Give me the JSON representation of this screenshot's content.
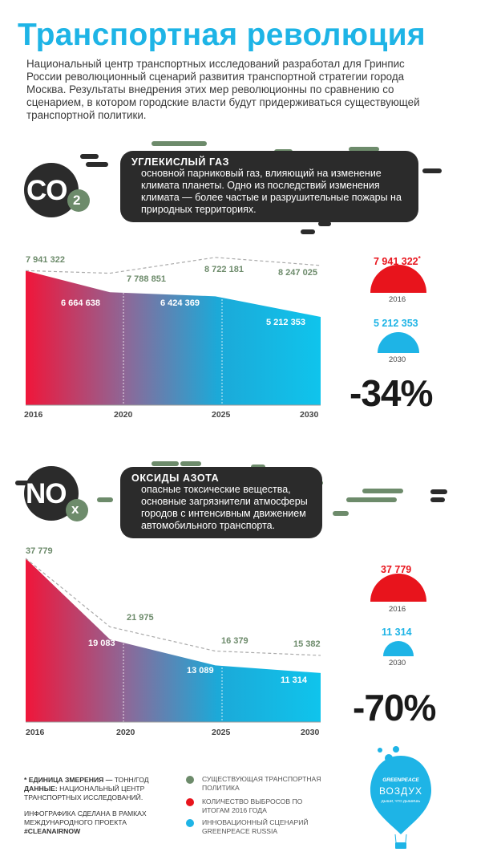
{
  "title": "Транспортная революция",
  "intro": "Национальный центр транспортных исследований разработал для Гринпис России революционный сценарий развития транспортной стратегии города Москва. Результаты внедрения этих мер революционны по сравнению со сценарием, в котором городские власти будут придерживаться существующей транспортной политики.",
  "co2": {
    "symbol": "CO",
    "subscript": "2",
    "bubble_title": "УГЛЕКИСЛЫЙ ГАЗ",
    "bubble_text": "основной парниковый газ, влияющий на изменение климата планеты. Одно из последствий изменения климата — более частые и разрушительные пожары на природных территориях.",
    "right": {
      "value_2016": "7 941 322",
      "asterisk": "*",
      "year_2016": "2016",
      "value_2030": "5 212 353",
      "year_2030": "2030",
      "percent": "-34%"
    }
  },
  "nox": {
    "symbol": "NO",
    "subscript": "x",
    "bubble_title": "ОКСИДЫ АЗОТА",
    "bubble_text": "опасные токсические вещества, основные загрязнители атмосферы городов с интенсивным движением автомобильного транспорта.",
    "right": {
      "value_2016": "37 779",
      "year_2016": "2016",
      "value_2030": "11 314",
      "year_2030": "2030",
      "percent": "-70%"
    }
  },
  "chart_data": [
    {
      "type": "area",
      "x": [
        2016,
        2020,
        2025,
        2030
      ],
      "series": [
        {
          "values": [
            7941322,
            7788851,
            8722181,
            8247025
          ],
          "labels": [
            "7 941 322",
            "7 788 851",
            "8 722 181",
            "8 247 025"
          ]
        },
        {
          "values": [
            7941322,
            6664638,
            6424369,
            5212353
          ],
          "labels": [
            "",
            "6 664 638",
            "6 424 369",
            "5 212 353"
          ]
        }
      ],
      "tick_labels": [
        "2016",
        "2020",
        "2025",
        "2030"
      ],
      "ylim": [
        0,
        8722181
      ]
    },
    {
      "type": "area",
      "x": [
        2016,
        2020,
        2025,
        2030
      ],
      "series": [
        {
          "values": [
            37779,
            21975,
            16379,
            15382
          ],
          "labels": [
            "37 779",
            "21 975",
            "16 379",
            "15 382"
          ]
        },
        {
          "values": [
            37779,
            19083,
            13089,
            11314
          ],
          "labels": [
            "",
            "19 083",
            "13 089",
            "11 314"
          ]
        }
      ],
      "tick_labels": [
        "2016",
        "2020",
        "2025",
        "2030"
      ],
      "ylim": [
        0,
        37779
      ]
    }
  ],
  "colors": {
    "existing": "#6d8b6b",
    "emissions_2016": "#e8141c",
    "greenpeace": "#1eb4e6",
    "dark": "#2b2b2b"
  },
  "footer": {
    "unit_label": "* ЕДИНИЦА ЗМЕРЕНИЯ —",
    "unit_value": "ТОНН/ГОД",
    "data_label": "ДАННЫЕ:",
    "data_value": "НАЦИОНАЛЬНЫЙ ЦЕНТР ТРАНСПОРТНЫХ ИССЛЕДОВАНИЙ.",
    "made_for": "ИНФОГРАФИКА СДЕЛАНА В РАМКАХ МЕЖДУНАРОДНОГО ПРОЕКТА",
    "hashtag": "#CLEANAIRNOW"
  },
  "legend": [
    {
      "text": "СУЩЕСТВУЮЩАЯ ТРАНСПОРТНАЯ ПОЛИТИКА",
      "color": "#6d8b6b"
    },
    {
      "text": "КОЛИЧЕСТВО ВЫБРОСОВ ПО ИТОГАМ 2016 ГОДА",
      "color": "#e8141c"
    },
    {
      "text": "ИННОВАЦИОННЫЙ СЦЕНАРИЙ GREENPEACE RUSSIA",
      "color": "#1eb4e6"
    }
  ],
  "logo": {
    "brand": "GREENPEACE",
    "name": "ВОЗДУХ",
    "tagline": "ДЫШИ, ЧТО ДЫШИШЬ"
  }
}
